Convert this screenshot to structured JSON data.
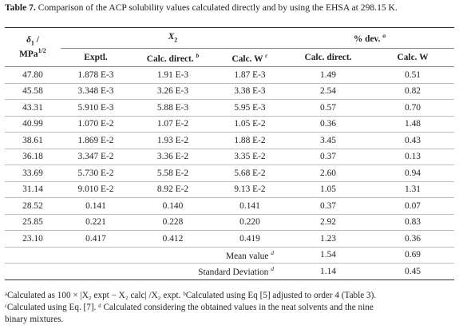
{
  "caption": {
    "label": "Table 7.",
    "text": " Comparison of the ACP solubility values calculated directly and by using the EHSA at 298.15 K."
  },
  "header": {
    "delta_symbol": "δ",
    "delta_sub": "1",
    "delta_slash": " /",
    "mpa_unit": "MPa",
    "mpa_exp": "1/2",
    "x2_symbol": "X",
    "x2_sub": "2",
    "pct_dev_label": "% dev.",
    "pct_dev_note": "a",
    "col_exptl": "Exptl.",
    "col_calc_direct": "Calc. direct.",
    "col_calc_direct_note": "b",
    "col_calc_w": "Calc. W",
    "col_calc_w_note": "c",
    "col_dev_calc_direct": "Calc. direct.",
    "col_dev_calc_w": "Calc. W"
  },
  "rows": [
    [
      "47.80",
      "1.878 E-3",
      "1.91 E-3",
      "1.87 E-3",
      "1.49",
      "0.51"
    ],
    [
      "45.58",
      "3.348 E-3",
      "3.26 E-3",
      "3.38 E-3",
      "2.54",
      "0.82"
    ],
    [
      "43.31",
      "5.910 E-3",
      "5.88 E-3",
      "5.95 E-3",
      "0.57",
      "0.70"
    ],
    [
      "40.99",
      "1.070 E-2",
      "1.07 E-2",
      "1.05 E-2",
      "0.36",
      "1.48"
    ],
    [
      "38.61",
      "1.869 E-2",
      "1.93 E-2",
      "1.88 E-2",
      "3.45",
      "0.43"
    ],
    [
      "36.18",
      "3.347 E-2",
      "3.36 E-2",
      "3.35 E-2",
      "0.37",
      "0.13"
    ],
    [
      "33.69",
      "5.730 E-2",
      "5.58 E-2",
      "5.68 E-2",
      "2.60",
      "0.94"
    ],
    [
      "31.14",
      "9.010 E-2",
      "8.92 E-2",
      "9.13 E-2",
      "1.05",
      "1.31"
    ],
    [
      "28.52",
      "0.141",
      "0.140",
      "0.141",
      "0.37",
      "0.07"
    ],
    [
      "25.85",
      "0.221",
      "0.228",
      "0.220",
      "2.92",
      "0.83"
    ],
    [
      "23.10",
      "0.417",
      "0.412",
      "0.419",
      "1.23",
      "0.36"
    ]
  ],
  "summary": {
    "mean_label": "Mean value",
    "mean_note": "d",
    "mean_direct": "1.54",
    "mean_w": "0.69",
    "sd_label": "Standard Deviation",
    "sd_note": "d",
    "sd_direct": "1.14",
    "sd_w": "0.45"
  },
  "footnotes": {
    "line1": "ᵃCalculated as 100 × |X₂ expt − X₂ calc| /X₂ expt. ᵇCalculated using Eq [5] adjusted to order 4 (Table 3).",
    "line2": "ᶜCalculated using Eq. [7]. ᵈ Calculated considering the obtained values in the neat solvents and the nine",
    "line3": "binary mixtures."
  }
}
